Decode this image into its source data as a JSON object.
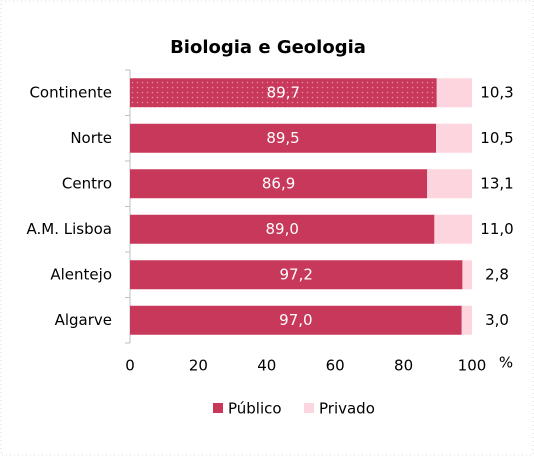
{
  "chart_data": {
    "type": "stacked-barh",
    "title": "Biologia e Geologia",
    "categories": [
      "Continente",
      "Norte",
      "Centro",
      "A.M. Lisboa",
      "Alentejo",
      "Algarve"
    ],
    "series": [
      {
        "name": "Público",
        "color": "#c8385a",
        "values": [
          89.7,
          89.5,
          86.9,
          89.0,
          97.2,
          97.0
        ],
        "value_labels": [
          "89,7",
          "89,5",
          "86,9",
          "89,0",
          "97,2",
          "97,0"
        ]
      },
      {
        "name": "Privado",
        "color": "#fdd5de",
        "values": [
          10.3,
          10.5,
          13.1,
          11.0,
          2.8,
          3.0
        ],
        "value_labels": [
          "10,3",
          "10,5",
          "13,1",
          "11,0",
          "2,8",
          "3,0"
        ]
      }
    ],
    "xlim": [
      0,
      100
    ],
    "xticks": [
      0,
      20,
      40,
      60,
      80,
      100
    ],
    "xlabel": "%",
    "legend": "bottom"
  }
}
